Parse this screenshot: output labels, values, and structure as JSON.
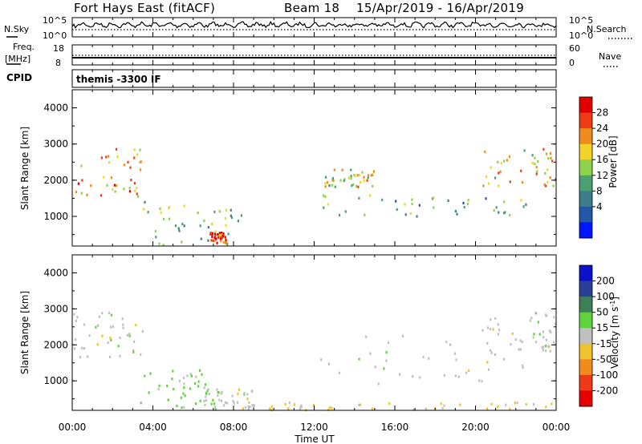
{
  "header": {
    "station_title": "Fort Hays East (fitACF)",
    "beam_label": "Beam 18",
    "date_range": "15/Apr/2019 - 16/Apr/2019"
  },
  "noise_panel": {
    "left_label": "N.Sky",
    "right_label": "N.Search",
    "left_ticks": [
      "10^5",
      "10^0"
    ],
    "right_ticks": [
      "10^5",
      "10^0"
    ]
  },
  "freq_panel": {
    "left_label_top": "Freq.",
    "left_label_unit": "[MHz]",
    "right_label": "Nave",
    "left_ticks": [
      "18",
      "8"
    ],
    "right_ticks": [
      "60",
      "0"
    ]
  },
  "cpid_panel": {
    "label": "CPID",
    "program_text": "themis -3300 IF"
  },
  "power_panel": {
    "ylabel": "Slant Range [km]",
    "yticks": [
      "4000",
      "3000",
      "2000",
      "1000"
    ],
    "colorbar_label": "Power [dB]",
    "colorbar_ticks": [
      "28",
      "24",
      "20",
      "16",
      "12",
      "8",
      "4"
    ]
  },
  "velocity_panel": {
    "ylabel": "Slant Range [km]",
    "yticks": [
      "4000",
      "3000",
      "2000",
      "1000"
    ],
    "colorbar_label": "Velocity [m s",
    "colorbar_label_sup": "-1",
    "colorbar_label_end": "]",
    "colorbar_ticks": [
      "200",
      "100",
      "50",
      "15",
      "-15",
      "-50",
      "-100",
      "-200"
    ]
  },
  "x_axis": {
    "tick_labels": [
      "00:00",
      "04:00",
      "08:00",
      "12:00",
      "16:00",
      "20:00",
      "00:00"
    ],
    "label": "Time UT"
  },
  "colors": {
    "power_scale": [
      "#0016ff",
      "#2358a8",
      "#3c7e8a",
      "#4aa06e",
      "#8ed24c",
      "#f2d32a",
      "#f08c1e",
      "#ee3d14",
      "#e00000"
    ],
    "velocity_scale": [
      "#0b12c9",
      "#2a3f9a",
      "#3d8057",
      "#5fd33f",
      "#c0c0c0",
      "#f0c22e",
      "#f08c1e",
      "#ef3a18",
      "#e60000"
    ]
  },
  "chart_data": [
    {
      "type": "heatmap",
      "title": "Power [dB]",
      "xlabel": "Time UT",
      "ylabel": "Slant Range [km]",
      "xlim": [
        "00:00",
        "24:00"
      ],
      "ylim": [
        180,
        4500
      ],
      "zlim": [
        0,
        30
      ],
      "echo_regions": [
        {
          "time_start": 0.0,
          "time_end": 3.5,
          "range_start": 1550,
          "range_end": 2900,
          "power_db": 22
        },
        {
          "time_start": 3.5,
          "time_end": 8.5,
          "range_start": 180,
          "range_end": 1400,
          "power_db": 14
        },
        {
          "time_start": 6.8,
          "time_end": 7.6,
          "range_start": 250,
          "range_end": 550,
          "power_db": 28
        },
        {
          "time_start": 12.3,
          "time_end": 22.5,
          "range_start": 1000,
          "range_end": 1600,
          "power_db": 12
        },
        {
          "time_start": 12.5,
          "time_end": 15.0,
          "range_start": 1800,
          "range_end": 2300,
          "power_db": 18
        },
        {
          "time_start": 20.3,
          "time_end": 24.0,
          "range_start": 1800,
          "range_end": 2900,
          "power_db": 20
        }
      ]
    },
    {
      "type": "heatmap",
      "title": "Velocity [m s-1]",
      "xlabel": "Time UT",
      "ylabel": "Slant Range [km]",
      "xlim": [
        "00:00",
        "24:00"
      ],
      "ylim": [
        180,
        4500
      ],
      "zlim": [
        -200,
        200
      ],
      "echo_regions": [
        {
          "time_start": 0.0,
          "time_end": 3.5,
          "range_start": 1600,
          "range_end": 2900,
          "velocity": 0
        },
        {
          "time_start": 3.3,
          "time_end": 7.0,
          "range_start": 250,
          "range_end": 1300,
          "velocity": 40
        },
        {
          "time_start": 6.5,
          "time_end": 9.0,
          "range_start": 200,
          "range_end": 800,
          "velocity": 0
        },
        {
          "time_start": 8.0,
          "time_end": 24.0,
          "range_start": 180,
          "range_end": 400,
          "velocity": -30
        },
        {
          "time_start": 12.3,
          "time_end": 22.5,
          "range_start": 900,
          "range_end": 2300,
          "velocity": 0
        },
        {
          "time_start": 20.3,
          "time_end": 24.0,
          "range_start": 1800,
          "range_end": 2900,
          "velocity": 0
        }
      ]
    }
  ]
}
